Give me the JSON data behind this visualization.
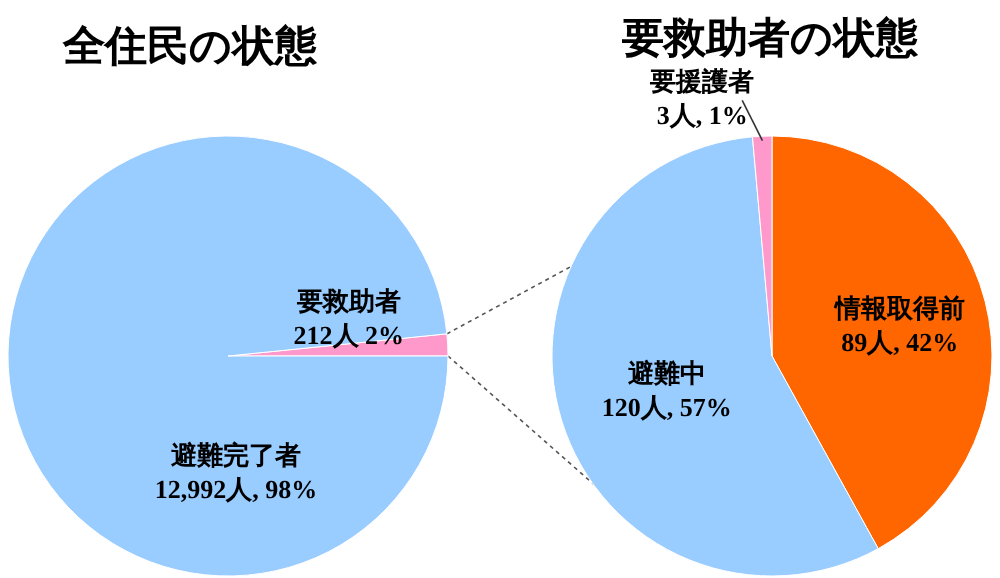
{
  "chart_data": [
    {
      "type": "pie",
      "title": "全住民の状態",
      "categories": [
        "要救助者",
        "避難完了者"
      ],
      "values": [
        212,
        12992
      ],
      "value_labels": [
        "212人 2%",
        "12,992人, 98%"
      ],
      "colors": [
        "#ff99cc",
        "#99ccff"
      ]
    },
    {
      "type": "pie",
      "title": "要救助者の状態",
      "categories": [
        "情報取得前",
        "避難中",
        "要援護者"
      ],
      "values": [
        89,
        120,
        3
      ],
      "value_labels": [
        "89人, 42%",
        "120人, 57%",
        "3人, 1%"
      ],
      "colors": [
        "#ff6600",
        "#99ccff",
        "#ff99cc"
      ]
    }
  ]
}
